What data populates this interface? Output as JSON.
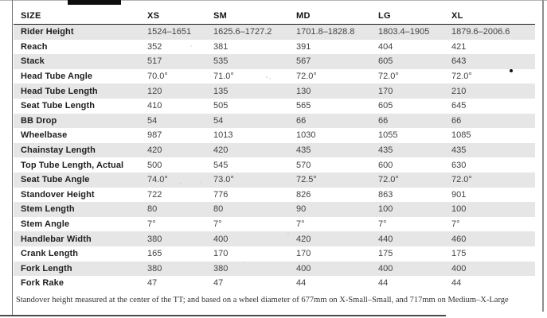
{
  "chart_data": {
    "type": "table",
    "columns": [
      "SIZE",
      "XS",
      "SM",
      "MD",
      "LG",
      "XL"
    ],
    "rows": [
      {
        "label": "Rider Height",
        "values": [
          "1524–1651",
          "1625.6–1727.2",
          "1701.8–1828.8",
          "1803.4–1905",
          "1879.6–2006.6"
        ]
      },
      {
        "label": "Reach",
        "values": [
          "352",
          "381",
          "391",
          "404",
          "421"
        ]
      },
      {
        "label": "Stack",
        "values": [
          "517",
          "535",
          "567",
          "605",
          "643"
        ]
      },
      {
        "label": "Head Tube Angle",
        "values": [
          "70.0°",
          "71.0°",
          "72.0°",
          "72.0°",
          "72.0°"
        ]
      },
      {
        "label": "Head Tube Length",
        "values": [
          "120",
          "135",
          "130",
          "170",
          "210"
        ]
      },
      {
        "label": "Seat Tube Length",
        "values": [
          "410",
          "505",
          "565",
          "605",
          "645"
        ]
      },
      {
        "label": "BB Drop",
        "values": [
          "54",
          "54",
          "66",
          "66",
          "66"
        ]
      },
      {
        "label": "Wheelbase",
        "values": [
          "987",
          "1013",
          "1030",
          "1055",
          "1085"
        ]
      },
      {
        "label": "Chainstay Length",
        "values": [
          "420",
          "420",
          "435",
          "435",
          "435"
        ]
      },
      {
        "label": "Top Tube Length, Actual",
        "values": [
          "500",
          "545",
          "570",
          "600",
          "630"
        ]
      },
      {
        "label": "Seat Tube Angle",
        "values": [
          "74.0°",
          "73.0°",
          "72.5°",
          "72.0°",
          "72.0°"
        ]
      },
      {
        "label": "Standover Height",
        "values": [
          "722",
          "776",
          "826",
          "863",
          "901"
        ]
      },
      {
        "label": "Stem Length",
        "values": [
          "80",
          "80",
          "90",
          "100",
          "100"
        ]
      },
      {
        "label": "Stem Angle",
        "values": [
          "7°",
          "7°",
          "7°",
          "7°",
          "7°"
        ]
      },
      {
        "label": "Handlebar Width",
        "values": [
          "380",
          "400",
          "420",
          "440",
          "460"
        ]
      },
      {
        "label": "Crank Length",
        "values": [
          "165",
          "170",
          "170",
          "175",
          "175"
        ]
      },
      {
        "label": "Fork Length",
        "values": [
          "380",
          "380",
          "400",
          "400",
          "400"
        ]
      },
      {
        "label": "Fork Rake",
        "values": [
          "47",
          "47",
          "44",
          "44",
          "44"
        ]
      }
    ],
    "footnote": "Standover height measured at the center of the TT; and based on a wheel diameter of 677mm on X-Small–Small, and 717mm on Medium–X-Large",
    "layout_hints": {
      "column_x_offsets": [
        9,
        168,
        251,
        355,
        458,
        550
      ],
      "striped_rows": "odd rows starting with Rider Height"
    },
    "colors": {
      "row_stripe": "#e6e6e6",
      "header_rule": "#1a1a1a",
      "label_text": "#1e1e1e",
      "value_text": "#424242",
      "footnote_text": "#333333"
    }
  }
}
